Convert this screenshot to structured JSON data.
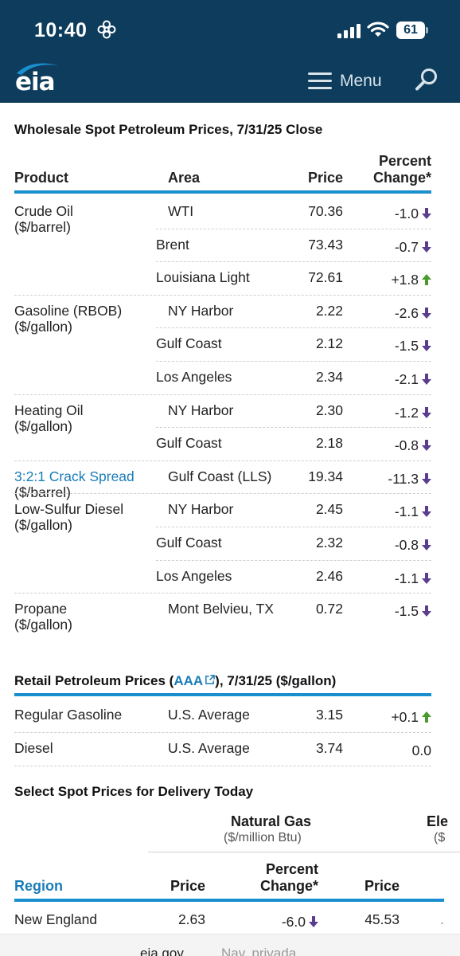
{
  "status_bar": {
    "time": "10:40",
    "battery": "61"
  },
  "header": {
    "logo_text": "eia",
    "menu_label": "Menu"
  },
  "wholesale": {
    "title": "Wholesale Spot Petroleum Prices, 7/31/25 Close",
    "columns": {
      "product": "Product",
      "area": "Area",
      "price": "Price",
      "percent_line1": "Percent",
      "percent_line2": "Change*"
    },
    "groups": [
      {
        "name": "Crude Oil",
        "unit": "($/barrel)",
        "rows": [
          {
            "area": "WTI",
            "price": "70.36",
            "change": "-1.0",
            "dir": "down"
          },
          {
            "area": "Brent",
            "price": "73.43",
            "change": "-0.7",
            "dir": "down"
          },
          {
            "area": "Louisiana Light",
            "price": "72.61",
            "change": "+1.8",
            "dir": "up"
          }
        ]
      },
      {
        "name": "Gasoline (RBOB)",
        "unit": "($/gallon)",
        "rows": [
          {
            "area": "NY Harbor",
            "price": "2.22",
            "change": "-2.6",
            "dir": "down"
          },
          {
            "area": "Gulf Coast",
            "price": "2.12",
            "change": "-1.5",
            "dir": "down"
          },
          {
            "area": "Los Angeles",
            "price": "2.34",
            "change": "-2.1",
            "dir": "down"
          }
        ]
      },
      {
        "name": "Heating Oil",
        "unit": "($/gallon)",
        "rows": [
          {
            "area": "NY Harbor",
            "price": "2.30",
            "change": "-1.2",
            "dir": "down"
          },
          {
            "area": "Gulf Coast",
            "price": "2.18",
            "change": "-0.8",
            "dir": "down"
          }
        ]
      },
      {
        "name": "3:2:1 Crack Spread",
        "unit": "($/barrel)",
        "rows": [
          {
            "area": "Gulf Coast (LLS)",
            "price": "19.34",
            "change": "-11.3",
            "dir": "down"
          }
        ]
      },
      {
        "name": "Low-Sulfur Diesel",
        "unit": "($/gallon)",
        "rows": [
          {
            "area": "NY Harbor",
            "price": "2.45",
            "change": "-1.1",
            "dir": "down"
          },
          {
            "area": "Gulf Coast",
            "price": "2.32",
            "change": "-0.8",
            "dir": "down"
          },
          {
            "area": "Los Angeles",
            "price": "2.46",
            "change": "-1.1",
            "dir": "down"
          }
        ]
      },
      {
        "name": "Propane",
        "unit": "($/gallon)",
        "rows": [
          {
            "area": "Mont Belvieu, TX",
            "price": "0.72",
            "change": "-1.5",
            "dir": "down"
          }
        ]
      }
    ]
  },
  "retail": {
    "title_before": "Retail Petroleum Prices (",
    "title_link": "AAA",
    "title_after": "), 7/31/25 ($/gallon)",
    "rows": [
      {
        "product": "Regular Gasoline",
        "area": "U.S. Average",
        "price": "3.15",
        "change": "+0.1",
        "dir": "up"
      },
      {
        "product": "Diesel",
        "area": "U.S. Average",
        "price": "3.74",
        "change": "0.0",
        "dir": "none"
      }
    ]
  },
  "spot": {
    "title": "Select Spot Prices for Delivery Today",
    "natural_gas_label": "Natural Gas",
    "natural_gas_unit": "($/million Btu)",
    "electricity_label": "Ele",
    "electricity_unit": "($",
    "columns": {
      "region": "Region",
      "price": "Price",
      "percent_line1": "Percent",
      "percent_line2": "Change*",
      "price2": "Price"
    },
    "rows": [
      {
        "region": "New England",
        "gas_price": "2.63",
        "gas_change": "-6.0",
        "dir": "down",
        "elec_price": "45.53"
      }
    ]
  },
  "bottom_bar": {
    "domain": "eia.gov",
    "mode": "Nav. privada"
  },
  "colors": {
    "header": "#0d3c5c",
    "accent": "#1a8fd0",
    "down_arrow": "#5b3d8f",
    "up_arrow": "#4a9a2e"
  }
}
